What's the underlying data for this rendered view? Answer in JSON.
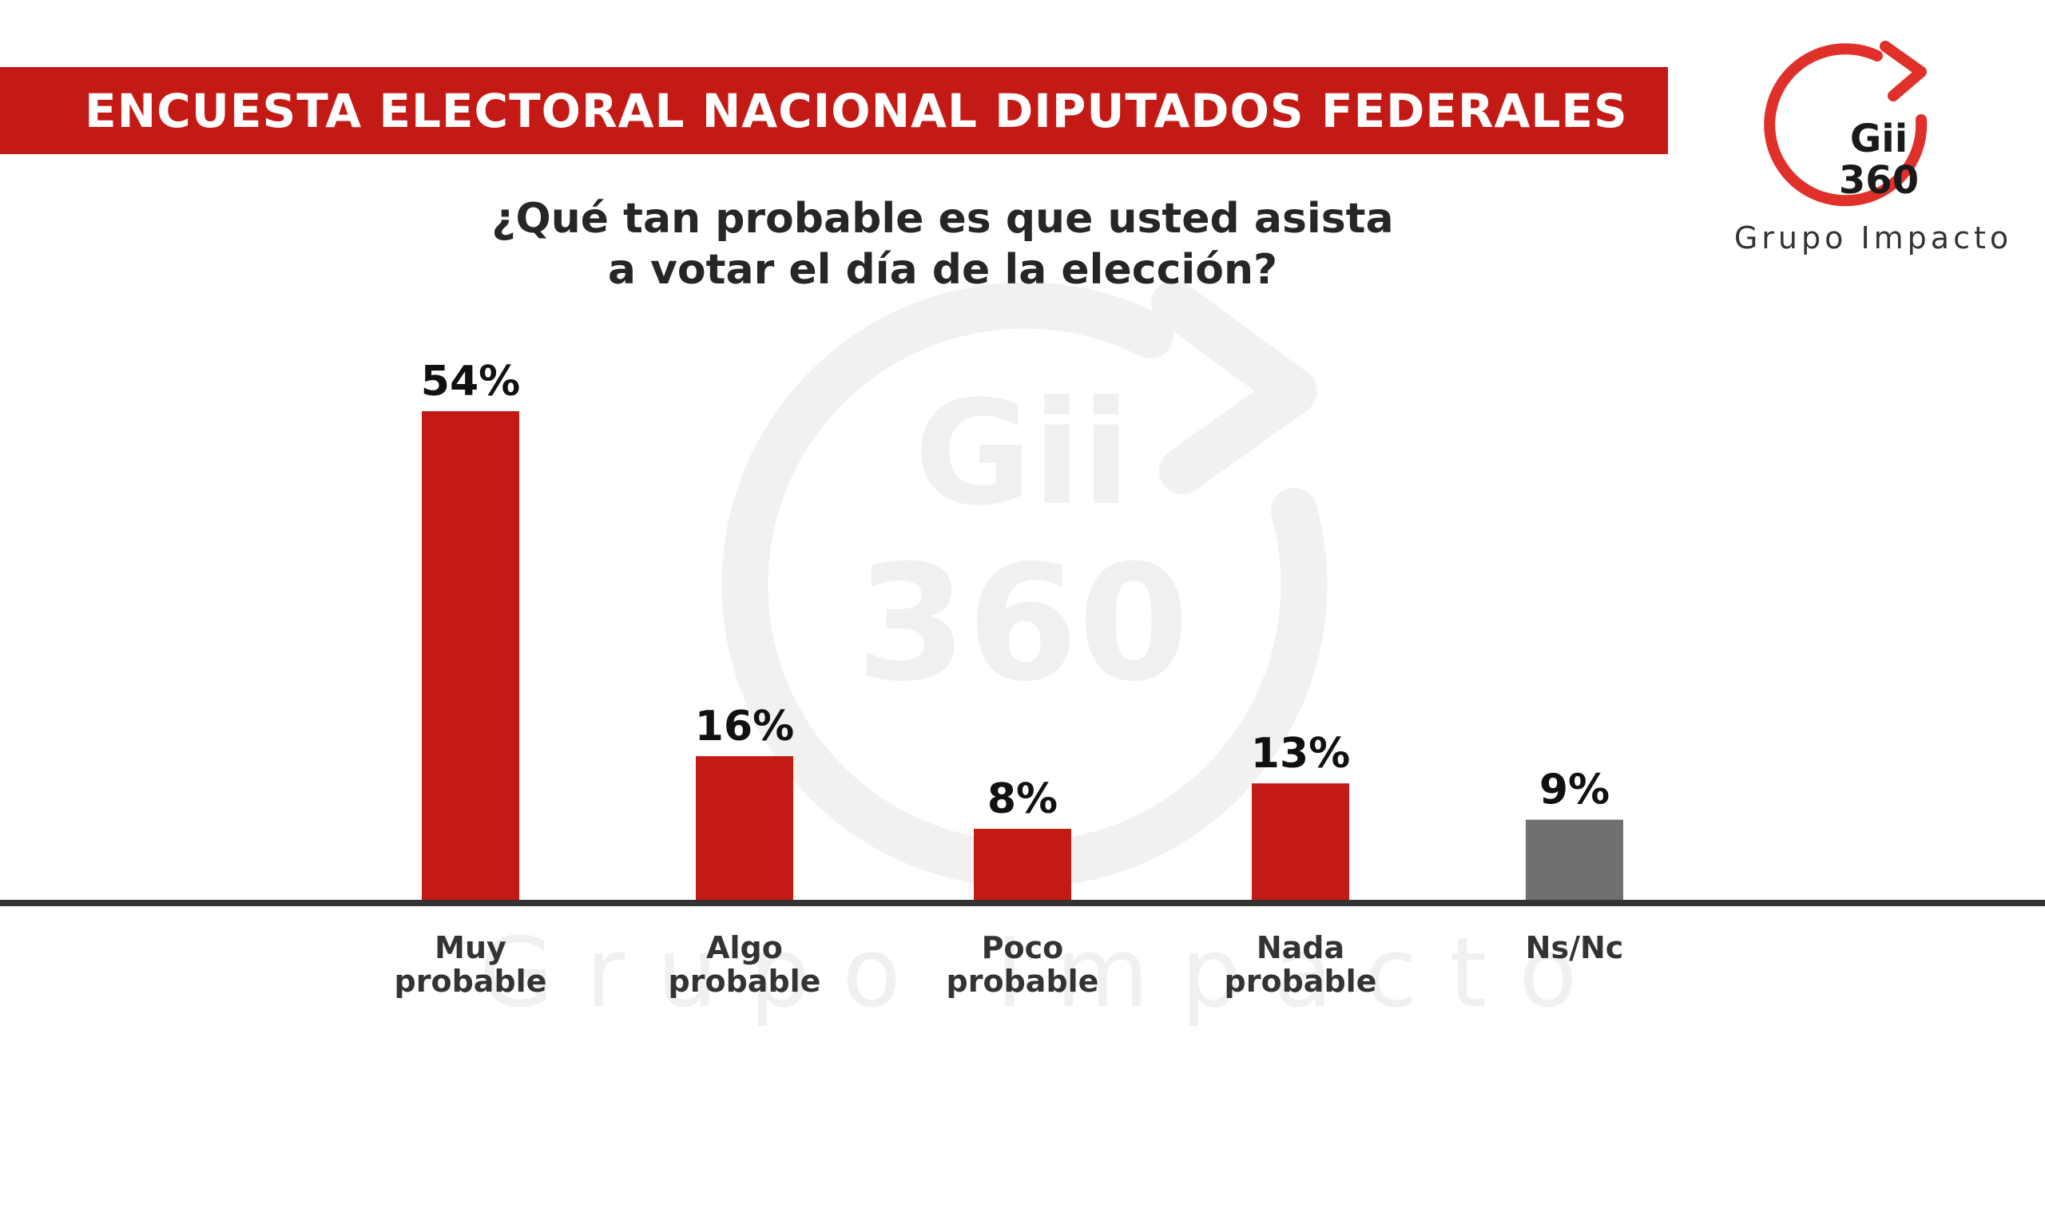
{
  "header": {
    "title": "ENCUESTA ELECTORAL NACIONAL DIPUTADOS FEDERALES"
  },
  "logo": {
    "line1": "Gii",
    "line2": "360",
    "company": "Grupo Impacto",
    "accent_color": "#e0302a"
  },
  "watermark": {
    "line1": "Gii",
    "line2": "360",
    "company": "Grupo Impacto"
  },
  "chart_data": {
    "type": "bar",
    "title": "¿Qué tan probable es que usted asista a votar el día de la elección?",
    "title_lines": [
      "¿Qué tan probable es que usted asista",
      "a votar el día de la elección?"
    ],
    "categories": [
      [
        "Muy",
        "probable"
      ],
      [
        "Algo",
        "probable"
      ],
      [
        "Poco",
        "probable"
      ],
      [
        "Nada",
        "probable"
      ],
      [
        "Ns/Nc"
      ]
    ],
    "values": [
      54,
      16,
      8,
      13,
      9
    ],
    "value_labels": [
      "54%",
      "16%",
      "8%",
      "13%",
      "9%"
    ],
    "colors": [
      "#c41a15",
      "#c41a15",
      "#c41a15",
      "#c41a15",
      "#707070"
    ],
    "ylim": [
      0,
      54
    ],
    "grid": false,
    "legend": "none",
    "xlabel": "",
    "ylabel": ""
  }
}
